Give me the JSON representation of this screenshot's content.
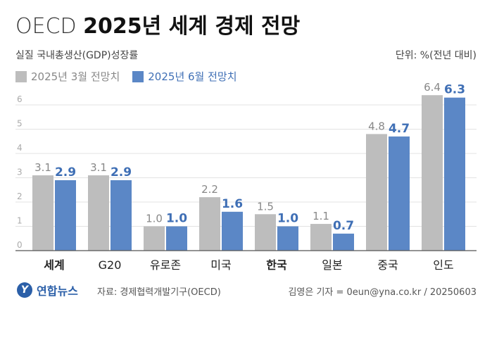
{
  "header": {
    "title_light": "OECD",
    "title_bold": "2025년 세계 경제 전망",
    "subtitle": "실질 국내총생산(GDP)성장률",
    "unit": "단위: %(전년 대비)"
  },
  "colors": {
    "march": "#bdbdbd",
    "june": "#5b87c6",
    "june_label": "#3f6fb5",
    "march_label": "#888888"
  },
  "chart_data": {
    "type": "bar",
    "title": "OECD 2025년 세계 경제 전망",
    "subtitle": "실질 국내총생산(GDP)성장률",
    "categories": [
      "세계",
      "G20",
      "유로존",
      "미국",
      "한국",
      "일본",
      "중국",
      "인도"
    ],
    "bold_categories": [
      "세계",
      "한국"
    ],
    "series": [
      {
        "name": "2025년 3월 전망치",
        "values": [
          3.1,
          3.1,
          1.0,
          2.2,
          1.5,
          1.1,
          4.8,
          6.4
        ]
      },
      {
        "name": "2025년 6월 전망치",
        "values": [
          2.9,
          2.9,
          1.0,
          1.6,
          1.0,
          0.7,
          4.7,
          6.3
        ]
      }
    ],
    "yticks": [
      "0",
      "1",
      "2",
      "3",
      "4",
      "5",
      "6"
    ],
    "ylim": [
      0,
      6.6
    ],
    "grid": true,
    "legend": "top-left"
  },
  "footer": {
    "logo_mark": "Y",
    "logo_text": "연합뉴스",
    "source": "자료: 경제협력개발기구(OECD)",
    "credit": "김영은 기자 = 0eun@yna.co.kr / 20250603"
  }
}
